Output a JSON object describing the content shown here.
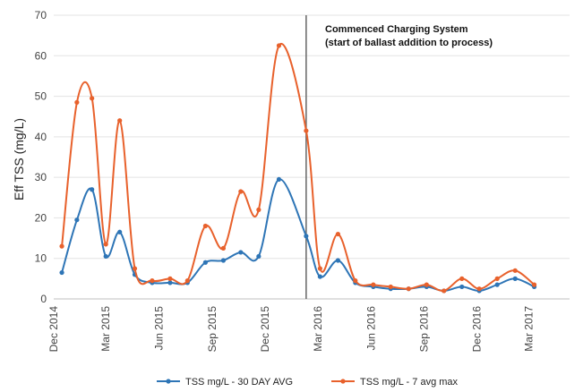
{
  "chart_data": {
    "type": "line",
    "ylabel": "Eff TSS (mg/L)",
    "ylim": [
      0,
      70
    ],
    "yticks": [
      0,
      10,
      20,
      30,
      40,
      50,
      60,
      70
    ],
    "xlim": [
      "2014-12-01",
      "2017-05-10"
    ],
    "xtick_labels": [
      {
        "date": "2014-12-01",
        "label": "Dec 2014"
      },
      {
        "date": "2015-03-01",
        "label": "Mar 2015"
      },
      {
        "date": "2015-06-01",
        "label": "Jun 2015"
      },
      {
        "date": "2015-09-01",
        "label": "Sep 2015"
      },
      {
        "date": "2015-12-01",
        "label": "Dec 2015"
      },
      {
        "date": "2016-03-01",
        "label": "Mar 2016"
      },
      {
        "date": "2016-06-01",
        "label": "Jun 2016"
      },
      {
        "date": "2016-09-01",
        "label": "Sep 2016"
      },
      {
        "date": "2016-12-01",
        "label": "Dec 2016"
      },
      {
        "date": "2017-03-01",
        "label": "Mar 2017"
      }
    ],
    "gridlines": "horizontal",
    "legend_position": "bottom",
    "annotation": {
      "date": "2016-02-10",
      "lines": [
        "Commenced Charging System",
        "(start of ballast addition to process)"
      ]
    },
    "series": [
      {
        "name": "TSS mg/L - 30 DAY AVG",
        "color": "#2E75B6",
        "points": [
          {
            "x": "2014-12-15",
            "y": 6.5
          },
          {
            "x": "2015-01-10",
            "y": 19.5
          },
          {
            "x": "2015-02-05",
            "y": 27
          },
          {
            "x": "2015-03-01",
            "y": 10.5
          },
          {
            "x": "2015-03-25",
            "y": 16.5
          },
          {
            "x": "2015-04-20",
            "y": 6
          },
          {
            "x": "2015-05-20",
            "y": 4
          },
          {
            "x": "2015-06-20",
            "y": 4
          },
          {
            "x": "2015-07-20",
            "y": 4
          },
          {
            "x": "2015-08-20",
            "y": 9
          },
          {
            "x": "2015-09-20",
            "y": 9.5
          },
          {
            "x": "2015-10-20",
            "y": 11.5
          },
          {
            "x": "2015-11-20",
            "y": 10.5
          },
          {
            "x": "2015-12-25",
            "y": 29.5
          },
          {
            "x": "2016-02-10",
            "y": 15.5
          },
          {
            "x": "2016-03-05",
            "y": 5.5
          },
          {
            "x": "2016-04-05",
            "y": 9.5
          },
          {
            "x": "2016-05-05",
            "y": 4
          },
          {
            "x": "2016-06-05",
            "y": 3
          },
          {
            "x": "2016-07-05",
            "y": 2.5
          },
          {
            "x": "2016-08-05",
            "y": 2.5
          },
          {
            "x": "2016-09-05",
            "y": 3
          },
          {
            "x": "2016-10-05",
            "y": 2
          },
          {
            "x": "2016-11-05",
            "y": 3
          },
          {
            "x": "2016-12-05",
            "y": 2
          },
          {
            "x": "2017-01-05",
            "y": 3.5
          },
          {
            "x": "2017-02-05",
            "y": 5
          },
          {
            "x": "2017-03-10",
            "y": 3
          }
        ]
      },
      {
        "name": "TSS mg/L - 7 avg max",
        "color": "#E8612C",
        "points": [
          {
            "x": "2014-12-15",
            "y": 13
          },
          {
            "x": "2015-01-10",
            "y": 48.5
          },
          {
            "x": "2015-02-05",
            "y": 49.5
          },
          {
            "x": "2015-03-01",
            "y": 13.5
          },
          {
            "x": "2015-03-25",
            "y": 44
          },
          {
            "x": "2015-04-20",
            "y": 7.5
          },
          {
            "x": "2015-05-20",
            "y": 4.5
          },
          {
            "x": "2015-06-20",
            "y": 5
          },
          {
            "x": "2015-07-20",
            "y": 4.5
          },
          {
            "x": "2015-08-20",
            "y": 18
          },
          {
            "x": "2015-09-20",
            "y": 12.5
          },
          {
            "x": "2015-10-20",
            "y": 26.5
          },
          {
            "x": "2015-11-20",
            "y": 22
          },
          {
            "x": "2015-12-25",
            "y": 62.5
          },
          {
            "x": "2016-02-10",
            "y": 41.5
          },
          {
            "x": "2016-03-05",
            "y": 7.5
          },
          {
            "x": "2016-04-05",
            "y": 16
          },
          {
            "x": "2016-05-05",
            "y": 4.5
          },
          {
            "x": "2016-06-05",
            "y": 3.5
          },
          {
            "x": "2016-07-05",
            "y": 3
          },
          {
            "x": "2016-08-05",
            "y": 2.5
          },
          {
            "x": "2016-09-05",
            "y": 3.5
          },
          {
            "x": "2016-10-05",
            "y": 2
          },
          {
            "x": "2016-11-05",
            "y": 5
          },
          {
            "x": "2016-12-05",
            "y": 2.5
          },
          {
            "x": "2017-01-05",
            "y": 5
          },
          {
            "x": "2017-02-05",
            "y": 7
          },
          {
            "x": "2017-03-10",
            "y": 3.5
          }
        ]
      }
    ]
  }
}
